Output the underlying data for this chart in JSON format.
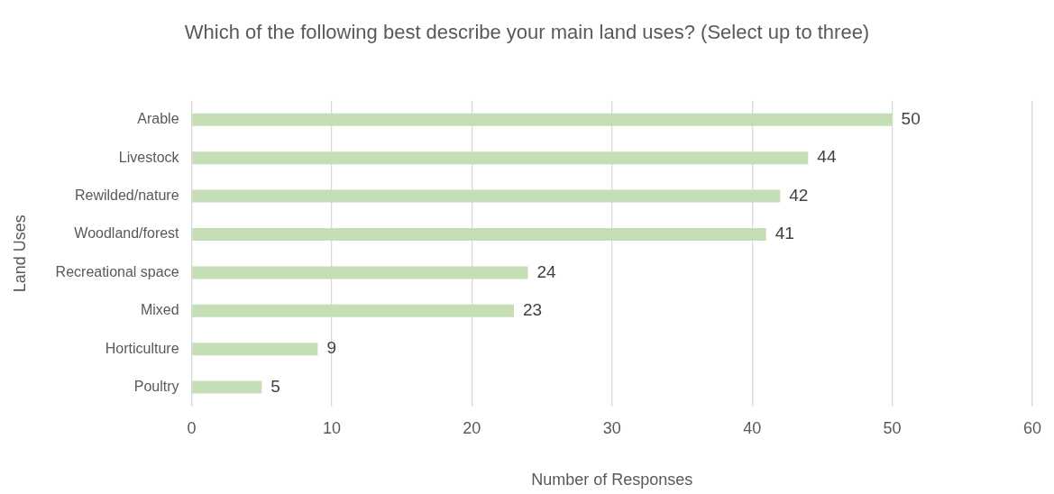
{
  "chart_data": {
    "type": "bar",
    "orientation": "horizontal",
    "title": "Which of the following best describe your main land uses? (Select up to three)",
    "xlabel": "Number of Responses",
    "ylabel": "Land Uses",
    "categories": [
      "Arable",
      "Livestock",
      "Rewilded/nature",
      "Woodland/forest",
      "Recreational space",
      "Mixed",
      "Horticulture",
      "Poultry"
    ],
    "values": [
      50,
      44,
      42,
      41,
      24,
      23,
      9,
      5
    ],
    "color": "#c5deb6",
    "xlim": [
      0,
      60
    ],
    "xticks": [
      0,
      10,
      20,
      30,
      40,
      50,
      60
    ],
    "grid": "x",
    "legend": false,
    "data_labels": true
  }
}
